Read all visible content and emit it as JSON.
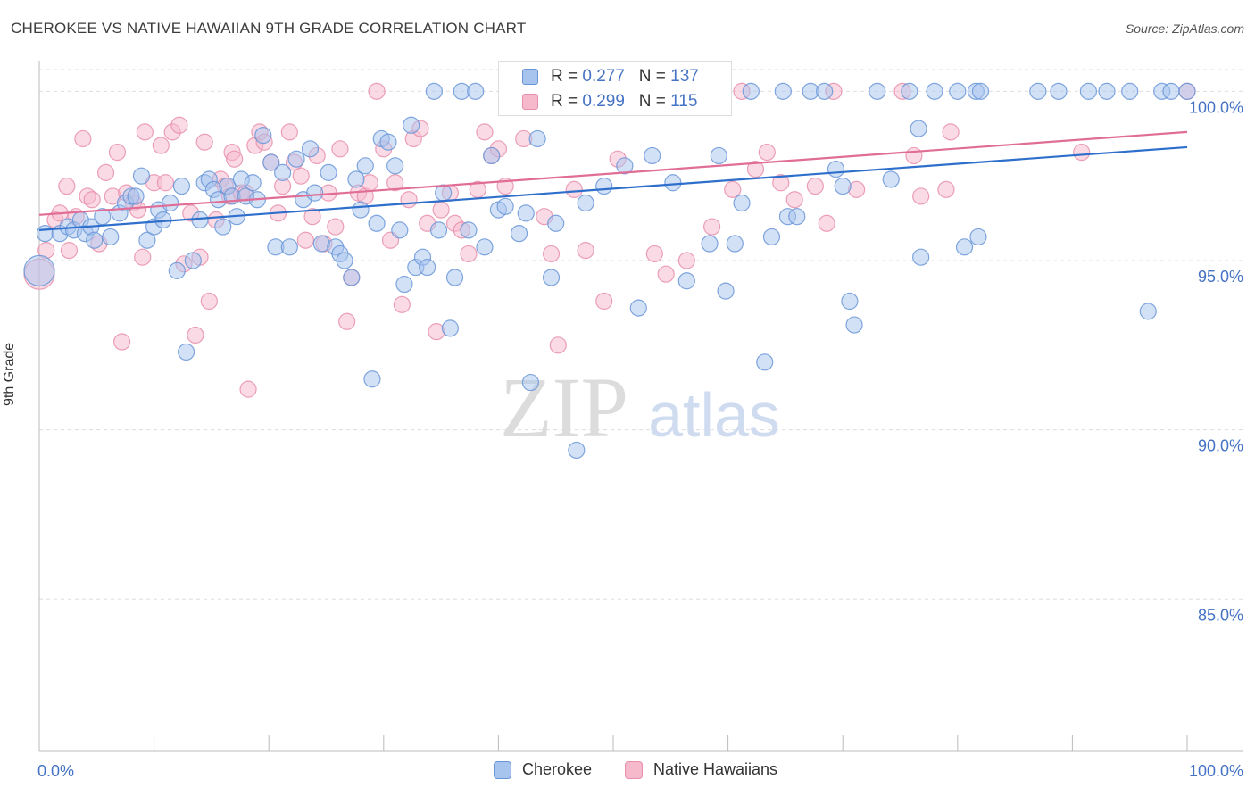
{
  "title": "CHEROKEE VS NATIVE HAWAIIAN 9TH GRADE CORRELATION CHART",
  "source": "Source: ZipAtlas.com",
  "watermark": {
    "zip": "ZIP",
    "atlas": "atlas"
  },
  "colors": {
    "cherokee_fill": "#a7c4ee",
    "cherokee_stroke": "#6a96d8",
    "cherokee_line": "#2e6fcc",
    "hawaiian_fill": "#f6b8cb",
    "hawaiian_stroke": "#e88fab",
    "hawaiian_line": "#e06d95",
    "axis_text": "#4472c4",
    "grid": "#dddddd"
  },
  "legend": {
    "rows": [
      {
        "r_label": "R = ",
        "r_value": "0.277",
        "n_label": "N = ",
        "n_value": "137"
      },
      {
        "r_label": "R = ",
        "r_value": "0.299",
        "n_label": "N = ",
        "n_value": "115"
      }
    ]
  },
  "chart_data": {
    "type": "scatter",
    "title": "CHEROKEE VS NATIVE HAWAIIAN 9TH GRADE CORRELATION CHART",
    "xlabel": "",
    "ylabel": "9th Grade",
    "xlim": [
      0,
      100
    ],
    "ylim": [
      80.5,
      100.8
    ],
    "x_tick_labels": [
      {
        "value": 0,
        "label": "0.0%"
      },
      {
        "value": 100,
        "label": "100.0%"
      }
    ],
    "y_tick_labels": [
      {
        "value": 100,
        "label": "100.0%"
      },
      {
        "value": 95,
        "label": "95.0%"
      },
      {
        "value": 90,
        "label": "90.0%"
      },
      {
        "value": 85,
        "label": "85.0%"
      }
    ],
    "grid": true,
    "legend_position": "bottom-center",
    "series": [
      {
        "name": "Cherokee",
        "r": 0.277,
        "n": 137,
        "trend": [
          [
            0,
            95.9
          ],
          [
            100,
            98.35
          ]
        ],
        "points": [
          [
            0,
            94.7
          ],
          [
            0.5,
            95.8
          ],
          [
            1.8,
            95.8
          ],
          [
            2.5,
            96.0
          ],
          [
            3.0,
            95.9
          ],
          [
            3.6,
            96.2
          ],
          [
            4.0,
            95.8
          ],
          [
            4.5,
            96.0
          ],
          [
            4.8,
            95.6
          ],
          [
            5.5,
            96.3
          ],
          [
            6.2,
            95.7
          ],
          [
            7.0,
            96.4
          ],
          [
            7.5,
            96.7
          ],
          [
            8.0,
            96.9
          ],
          [
            8.4,
            96.9
          ],
          [
            8.9,
            97.5
          ],
          [
            9.4,
            95.6
          ],
          [
            10.0,
            96.0
          ],
          [
            10.4,
            96.5
          ],
          [
            10.8,
            96.2
          ],
          [
            11.4,
            96.7
          ],
          [
            12.0,
            94.7
          ],
          [
            12.4,
            97.2
          ],
          [
            12.8,
            92.3
          ],
          [
            13.4,
            95.0
          ],
          [
            14.0,
            96.2
          ],
          [
            14.4,
            97.3
          ],
          [
            14.8,
            97.4
          ],
          [
            15.2,
            97.1
          ],
          [
            15.6,
            96.8
          ],
          [
            16.0,
            96.0
          ],
          [
            16.4,
            97.2
          ],
          [
            16.8,
            96.9
          ],
          [
            17.2,
            96.3
          ],
          [
            17.6,
            97.4
          ],
          [
            18.0,
            96.9
          ],
          [
            18.6,
            97.3
          ],
          [
            19.0,
            96.8
          ],
          [
            19.5,
            98.7
          ],
          [
            20.2,
            97.9
          ],
          [
            20.6,
            95.4
          ],
          [
            21.2,
            97.6
          ],
          [
            21.8,
            95.4
          ],
          [
            22.4,
            98.0
          ],
          [
            23.0,
            96.8
          ],
          [
            23.6,
            98.3
          ],
          [
            24.0,
            97.0
          ],
          [
            24.6,
            95.5
          ],
          [
            25.2,
            97.6
          ],
          [
            25.8,
            95.4
          ],
          [
            26.2,
            95.2
          ],
          [
            26.6,
            95.0
          ],
          [
            27.2,
            94.5
          ],
          [
            27.6,
            97.4
          ],
          [
            28.0,
            96.5
          ],
          [
            28.4,
            97.8
          ],
          [
            29.0,
            91.5
          ],
          [
            29.4,
            96.1
          ],
          [
            29.8,
            98.6
          ],
          [
            30.4,
            98.5
          ],
          [
            31.0,
            97.8
          ],
          [
            31.4,
            95.9
          ],
          [
            31.8,
            94.3
          ],
          [
            32.4,
            99.0
          ],
          [
            32.8,
            94.8
          ],
          [
            33.4,
            95.1
          ],
          [
            33.8,
            94.8
          ],
          [
            34.4,
            100
          ],
          [
            34.8,
            95.9
          ],
          [
            35.2,
            97.0
          ],
          [
            35.8,
            93.0
          ],
          [
            36.2,
            94.5
          ],
          [
            36.8,
            100
          ],
          [
            37.4,
            95.9
          ],
          [
            38.0,
            100
          ],
          [
            38.8,
            95.4
          ],
          [
            39.4,
            98.1
          ],
          [
            40.0,
            96.5
          ],
          [
            40.6,
            96.6
          ],
          [
            41.2,
            100
          ],
          [
            41.8,
            95.8
          ],
          [
            42.4,
            96.4
          ],
          [
            42.8,
            91.4
          ],
          [
            43.4,
            98.6
          ],
          [
            44.0,
            100
          ],
          [
            44.6,
            94.5
          ],
          [
            45.0,
            96.1
          ],
          [
            46.0,
            100
          ],
          [
            46.8,
            89.4
          ],
          [
            47.6,
            96.7
          ],
          [
            48.4,
            100
          ],
          [
            49.2,
            97.2
          ],
          [
            50.0,
            100
          ],
          [
            51.0,
            97.8
          ],
          [
            52.2,
            93.6
          ],
          [
            53.4,
            98.1
          ],
          [
            54.0,
            100
          ],
          [
            55.2,
            97.3
          ],
          [
            56.4,
            94.4
          ],
          [
            57.6,
            100
          ],
          [
            58.4,
            95.5
          ],
          [
            59.2,
            98.1
          ],
          [
            59.8,
            94.1
          ],
          [
            60.6,
            95.5
          ],
          [
            61.2,
            96.7
          ],
          [
            62.0,
            100
          ],
          [
            63.2,
            92.0
          ],
          [
            63.8,
            95.7
          ],
          [
            64.8,
            100
          ],
          [
            65.2,
            96.3
          ],
          [
            66.0,
            96.3
          ],
          [
            67.2,
            100
          ],
          [
            68.4,
            100
          ],
          [
            69.4,
            97.7
          ],
          [
            70.0,
            97.2
          ],
          [
            70.6,
            93.8
          ],
          [
            71.0,
            93.1
          ],
          [
            73.0,
            100
          ],
          [
            74.2,
            97.4
          ],
          [
            75.8,
            100
          ],
          [
            76.6,
            98.9
          ],
          [
            76.8,
            95.1
          ],
          [
            78.0,
            100
          ],
          [
            80.0,
            100
          ],
          [
            80.6,
            95.4
          ],
          [
            81.6,
            100
          ],
          [
            82.0,
            100
          ],
          [
            81.8,
            95.7
          ],
          [
            87.0,
            100
          ],
          [
            88.8,
            100
          ],
          [
            91.4,
            100
          ],
          [
            93.0,
            100
          ],
          [
            95.0,
            100
          ],
          [
            96.6,
            93.5
          ],
          [
            97.8,
            100
          ],
          [
            98.6,
            100
          ],
          [
            100,
            100
          ]
        ]
      },
      {
        "name": "Native Hawaiians",
        "r": 0.299,
        "n": 115,
        "trend": [
          [
            0,
            96.35
          ],
          [
            100,
            98.8
          ]
        ],
        "points": [
          [
            0,
            94.6
          ],
          [
            0.6,
            95.3
          ],
          [
            1.4,
            96.2
          ],
          [
            1.8,
            96.4
          ],
          [
            2.4,
            97.2
          ],
          [
            2.6,
            95.3
          ],
          [
            3.2,
            96.3
          ],
          [
            3.8,
            98.6
          ],
          [
            4.2,
            96.9
          ],
          [
            4.6,
            96.8
          ],
          [
            5.2,
            95.5
          ],
          [
            5.8,
            97.6
          ],
          [
            6.4,
            96.9
          ],
          [
            6.8,
            98.2
          ],
          [
            7.2,
            92.6
          ],
          [
            7.6,
            97.0
          ],
          [
            8.2,
            96.7
          ],
          [
            8.6,
            96.5
          ],
          [
            9.0,
            95.1
          ],
          [
            9.2,
            98.8
          ],
          [
            10.0,
            97.3
          ],
          [
            10.6,
            98.4
          ],
          [
            11.0,
            97.3
          ],
          [
            11.6,
            98.8
          ],
          [
            12.2,
            99.0
          ],
          [
            12.6,
            94.9
          ],
          [
            13.2,
            96.4
          ],
          [
            13.6,
            92.8
          ],
          [
            14.0,
            95.1
          ],
          [
            14.4,
            98.5
          ],
          [
            14.8,
            93.8
          ],
          [
            15.4,
            96.2
          ],
          [
            15.8,
            97.4
          ],
          [
            16.2,
            97.2
          ],
          [
            16.6,
            96.9
          ],
          [
            16.8,
            98.2
          ],
          [
            17.0,
            98.0
          ],
          [
            17.6,
            97.0
          ],
          [
            18.0,
            97.0
          ],
          [
            18.2,
            91.2
          ],
          [
            18.8,
            98.4
          ],
          [
            19.2,
            98.8
          ],
          [
            19.6,
            98.5
          ],
          [
            20.2,
            97.9
          ],
          [
            20.8,
            96.4
          ],
          [
            21.2,
            97.2
          ],
          [
            21.8,
            98.8
          ],
          [
            22.2,
            97.9
          ],
          [
            22.8,
            97.5
          ],
          [
            23.2,
            95.6
          ],
          [
            23.8,
            96.3
          ],
          [
            24.2,
            98.1
          ],
          [
            24.8,
            95.5
          ],
          [
            25.2,
            97.0
          ],
          [
            25.8,
            96.0
          ],
          [
            26.2,
            98.3
          ],
          [
            26.8,
            93.2
          ],
          [
            27.2,
            94.5
          ],
          [
            27.8,
            97.0
          ],
          [
            28.4,
            96.9
          ],
          [
            28.8,
            97.3
          ],
          [
            29.4,
            100
          ],
          [
            30.0,
            98.3
          ],
          [
            30.6,
            95.6
          ],
          [
            31.0,
            97.3
          ],
          [
            31.6,
            93.7
          ],
          [
            32.2,
            96.8
          ],
          [
            32.6,
            98.6
          ],
          [
            33.2,
            98.9
          ],
          [
            33.8,
            96.1
          ],
          [
            34.6,
            92.9
          ],
          [
            35.0,
            96.5
          ],
          [
            35.8,
            97.0
          ],
          [
            36.2,
            96.1
          ],
          [
            36.8,
            95.9
          ],
          [
            37.4,
            95.2
          ],
          [
            38.2,
            97.1
          ],
          [
            38.8,
            98.8
          ],
          [
            39.4,
            98.1
          ],
          [
            40.0,
            98.3
          ],
          [
            40.6,
            97.2
          ],
          [
            41.2,
            100
          ],
          [
            42.2,
            98.6
          ],
          [
            43.0,
            100
          ],
          [
            44.0,
            96.3
          ],
          [
            44.6,
            95.2
          ],
          [
            45.2,
            92.5
          ],
          [
            45.8,
            100
          ],
          [
            46.6,
            97.1
          ],
          [
            47.6,
            95.3
          ],
          [
            48.2,
            100
          ],
          [
            49.2,
            93.8
          ],
          [
            50.4,
            98.0
          ],
          [
            52.0,
            100
          ],
          [
            53.6,
            95.2
          ],
          [
            54.6,
            94.6
          ],
          [
            55.6,
            100
          ],
          [
            56.4,
            95.0
          ],
          [
            57.6,
            100
          ],
          [
            58.6,
            96.0
          ],
          [
            60.4,
            97.1
          ],
          [
            61.2,
            100
          ],
          [
            62.4,
            97.7
          ],
          [
            63.4,
            98.2
          ],
          [
            64.6,
            97.3
          ],
          [
            65.8,
            96.8
          ],
          [
            67.6,
            97.2
          ],
          [
            68.6,
            96.1
          ],
          [
            69.2,
            100
          ],
          [
            71.2,
            97.1
          ],
          [
            75.2,
            100
          ],
          [
            76.2,
            98.1
          ],
          [
            76.8,
            96.9
          ],
          [
            79.0,
            97.1
          ],
          [
            79.4,
            98.8
          ],
          [
            90.8,
            98.2
          ],
          [
            100,
            100
          ]
        ]
      }
    ]
  }
}
